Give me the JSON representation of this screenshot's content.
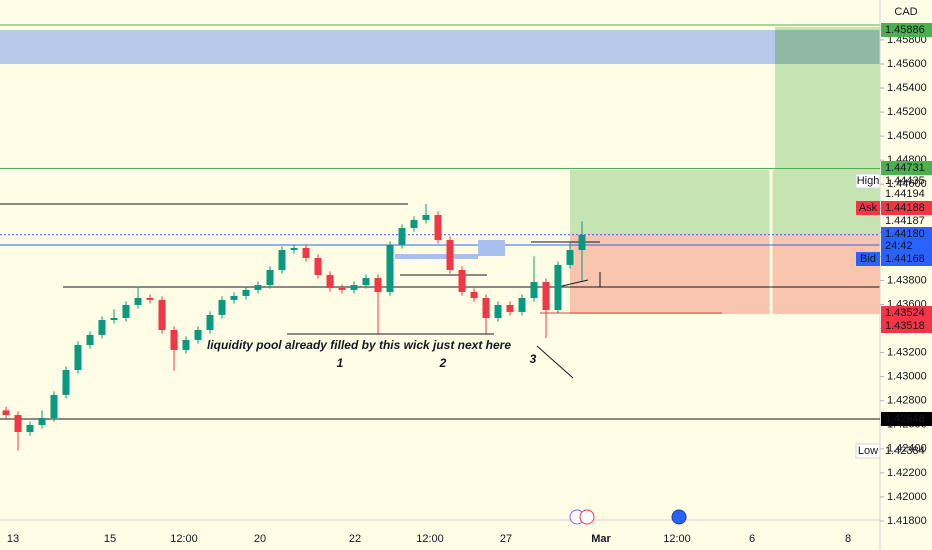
{
  "chart_data": {
    "type": "candlestick",
    "currency": "CAD",
    "up_color": "#089981",
    "down_color": "#f23645",
    "open": [
      1.4272,
      1.42681,
      1.4254,
      1.42598,
      1.42656,
      1.42848,
      1.43055,
      1.43263,
      1.43347,
      1.43471,
      1.43488,
      1.43596,
      1.43654,
      1.43638,
      1.43388,
      1.43222,
      1.43305,
      1.43388,
      1.43513,
      1.43638,
      1.43671,
      1.43721,
      1.43762,
      1.43887,
      1.44053,
      1.4407,
      1.43987,
      1.43845,
      1.43737,
      1.43721,
      1.43762,
      1.4382,
      1.43704,
      1.44095,
      1.44236,
      1.44303,
      1.44344,
      1.44136,
      1.43887,
      1.43704,
      1.43654,
      1.43488,
      1.43596,
      1.43538,
      1.43654,
      1.43787,
      1.43554,
      1.43929,
      1.44053
    ],
    "high": [
      1.4275,
      1.42711,
      1.42628,
      1.4272,
      1.42878,
      1.43085,
      1.43293,
      1.43377,
      1.43501,
      1.4356,
      1.43626,
      1.4375,
      1.43684,
      1.43668,
      1.43418,
      1.43335,
      1.43418,
      1.43543,
      1.43668,
      1.43701,
      1.43751,
      1.43792,
      1.43917,
      1.44083,
      1.441,
      1.441,
      1.44017,
      1.43875,
      1.43767,
      1.43792,
      1.4385,
      1.4385,
      1.44125,
      1.44266,
      1.44333,
      1.44435,
      1.44374,
      1.44166,
      1.43917,
      1.43734,
      1.43684,
      1.43626,
      1.43626,
      1.43684,
      1.44,
      1.43817,
      1.43959,
      1.4412,
      1.4429
    ],
    "low": [
      1.42651,
      1.42384,
      1.4251,
      1.42568,
      1.42626,
      1.42818,
      1.43025,
      1.43233,
      1.43317,
      1.43441,
      1.43458,
      1.43566,
      1.43608,
      1.43358,
      1.4305,
      1.43192,
      1.43275,
      1.43358,
      1.43483,
      1.43608,
      1.43641,
      1.43691,
      1.43732,
      1.43857,
      1.44023,
      1.43957,
      1.43815,
      1.43707,
      1.43691,
      1.43691,
      1.43732,
      1.4336,
      1.43674,
      1.44065,
      1.44206,
      1.44273,
      1.44106,
      1.43857,
      1.43674,
      1.43624,
      1.4336,
      1.43458,
      1.43508,
      1.43508,
      1.43624,
      1.4332,
      1.43524,
      1.43899,
      1.438
    ],
    "close": [
      1.42681,
      1.4254,
      1.42598,
      1.42656,
      1.42848,
      1.43055,
      1.43263,
      1.43347,
      1.43471,
      1.43488,
      1.43596,
      1.43654,
      1.43638,
      1.43388,
      1.43222,
      1.43305,
      1.43388,
      1.43513,
      1.43638,
      1.43671,
      1.43721,
      1.43762,
      1.43887,
      1.44053,
      1.4407,
      1.43987,
      1.43845,
      1.43737,
      1.43721,
      1.43762,
      1.4382,
      1.43704,
      1.44095,
      1.44236,
      1.44303,
      1.44344,
      1.44136,
      1.43887,
      1.43704,
      1.43654,
      1.43488,
      1.43596,
      1.43538,
      1.43654,
      1.43787,
      1.43554,
      1.43929,
      1.44053,
      1.4418
    ],
    "ylim": [
      1.41808,
      1.46132
    ],
    "yticks": [
      {
        "value": 1.418,
        "label": "1.41800"
      },
      {
        "value": 1.42,
        "label": "1.42000"
      },
      {
        "value": 1.422,
        "label": "1.42200"
      },
      {
        "value": 1.424,
        "label": "1.42400"
      },
      {
        "value": 1.426,
        "label": "1.42600"
      },
      {
        "value": 1.428,
        "label": "1.42800"
      },
      {
        "value": 1.43,
        "label": "1.43000"
      },
      {
        "value": 1.432,
        "label": "1.43200"
      },
      {
        "value": 1.434,
        "label": "1.43400"
      },
      {
        "value": 1.436,
        "label": "1.43600"
      },
      {
        "value": 1.438,
        "label": "1.43800"
      },
      {
        "value": 1.44,
        "label": "1.44000"
      },
      {
        "value": 1.442,
        "label": "1.44200"
      },
      {
        "value": 1.444,
        "label": "1.44400"
      },
      {
        "value": 1.446,
        "label": "1.44600"
      },
      {
        "value": 1.448,
        "label": "1.44800"
      },
      {
        "value": 1.45,
        "label": "1.45000"
      },
      {
        "value": 1.452,
        "label": "1.45200"
      },
      {
        "value": 1.454,
        "label": "1.45400"
      },
      {
        "value": 1.456,
        "label": "1.45600"
      },
      {
        "value": 1.458,
        "label": "1.45800"
      }
    ],
    "x_labels": [
      "13",
      "15",
      "12:00",
      "20",
      "22",
      "12:00",
      "27",
      "Mar",
      "12:00",
      "6",
      "8"
    ],
    "price_labels": [
      {
        "value": 1.45886,
        "label": "1.45886",
        "color": "#4caf50"
      },
      {
        "value": 1.44731,
        "label": "1.44731",
        "color": "#4caf50"
      },
      {
        "tag": "High",
        "value": 1.44435,
        "label": "1.44435"
      },
      {
        "value": 1.44194,
        "label": "1.44194"
      },
      {
        "tag": "Ask",
        "value": 1.44188,
        "label": "1.44188",
        "color": "#f23645"
      },
      {
        "value": 1.44187,
        "label": "1.44187"
      },
      {
        "value": 1.4418,
        "label": "1.44180",
        "sub": "24:42",
        "color": "#2962ff"
      },
      {
        "tag": "Bid",
        "value": 1.44168,
        "label": "1.44168",
        "color": "#2962ff"
      },
      {
        "value": 1.43524,
        "label": "1.43524",
        "color": "#f23645"
      },
      {
        "value": 1.43518,
        "label": "1.43518",
        "color": "#f23645"
      },
      {
        "value": 1.42648,
        "label": "1.42648",
        "color": "#000000"
      },
      {
        "tag": "Low",
        "value": 1.42384,
        "label": "1.42384"
      }
    ],
    "annotations": [
      "liquidity pool already filled by this wick just next here",
      "1",
      "2",
      "3"
    ]
  }
}
